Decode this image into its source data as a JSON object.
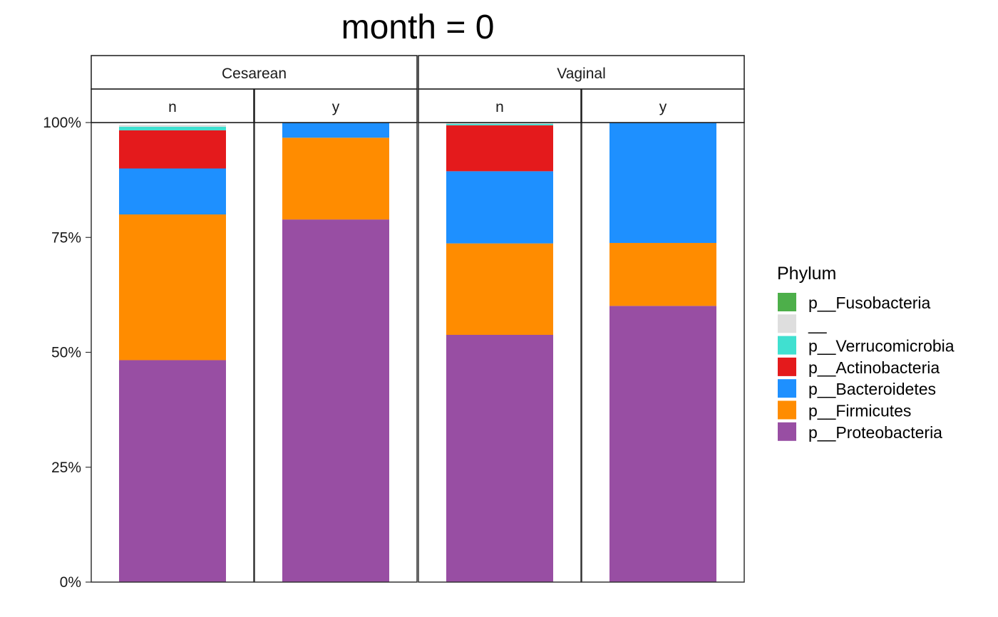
{
  "chart_data": {
    "type": "bar",
    "stacked": true,
    "percent_scale": true,
    "title": "month = 0",
    "xlabel": "",
    "ylabel": "",
    "ylim": [
      0,
      1
    ],
    "y_ticks": [
      {
        "value": 0,
        "label": "0%"
      },
      {
        "value": 0.25,
        "label": "25%"
      },
      {
        "value": 0.5,
        "label": "50%"
      },
      {
        "value": 0.75,
        "label": "75%"
      },
      {
        "value": 1,
        "label": "100%"
      }
    ],
    "facet_groups": [
      "Cesarean",
      "Vaginal"
    ],
    "facet_subgroups": [
      "n",
      "y"
    ],
    "legend": {
      "title": "Phylum",
      "placement": "right",
      "entries": [
        {
          "label": "p__Fusobacteria",
          "color": "#4DAF4A"
        },
        {
          "label": "__",
          "color": "#DEDEDE"
        },
        {
          "label": "p__Verrucomicrobia",
          "color": "#40E0D0"
        },
        {
          "label": "p__Actinobacteria",
          "color": "#E41A1C"
        },
        {
          "label": "p__Bacteroidetes",
          "color": "#1E90FF"
        },
        {
          "label": "p__Firmicutes",
          "color": "#FF8C00"
        },
        {
          "label": "p__Proteobacteria",
          "color": "#984EA3"
        }
      ]
    },
    "stack_order_bottom_to_top": [
      "p__Proteobacteria",
      "p__Firmicutes",
      "p__Bacteroidetes",
      "p__Actinobacteria",
      "p__Verrucomicrobia",
      "__",
      "p__Fusobacteria"
    ],
    "panels": [
      {
        "group": "Cesarean",
        "subgroup": "n",
        "values": {
          "p__Proteobacteria": 0.483,
          "p__Firmicutes": 0.317,
          "p__Bacteroidetes": 0.1,
          "p__Actinobacteria": 0.083,
          "p__Verrucomicrobia": 0.008,
          "__": 0.004,
          "p__Fusobacteria": 0.0
        }
      },
      {
        "group": "Cesarean",
        "subgroup": "y",
        "values": {
          "p__Proteobacteria": 0.789,
          "p__Firmicutes": 0.178,
          "p__Bacteroidetes": 0.033,
          "p__Actinobacteria": 0.0,
          "p__Verrucomicrobia": 0.0,
          "__": 0.0,
          "p__Fusobacteria": 0.0
        }
      },
      {
        "group": "Vaginal",
        "subgroup": "n",
        "values": {
          "p__Proteobacteria": 0.538,
          "p__Firmicutes": 0.199,
          "p__Bacteroidetes": 0.157,
          "p__Actinobacteria": 0.1,
          "p__Verrucomicrobia": 0.003,
          "__": 0.002,
          "p__Fusobacteria": 0.001
        }
      },
      {
        "group": "Vaginal",
        "subgroup": "y",
        "values": {
          "p__Proteobacteria": 0.601,
          "p__Firmicutes": 0.137,
          "p__Bacteroidetes": 0.262,
          "p__Actinobacteria": 0.0,
          "p__Verrucomicrobia": 0.0,
          "__": 0.0,
          "p__Fusobacteria": 0.0
        }
      }
    ]
  }
}
